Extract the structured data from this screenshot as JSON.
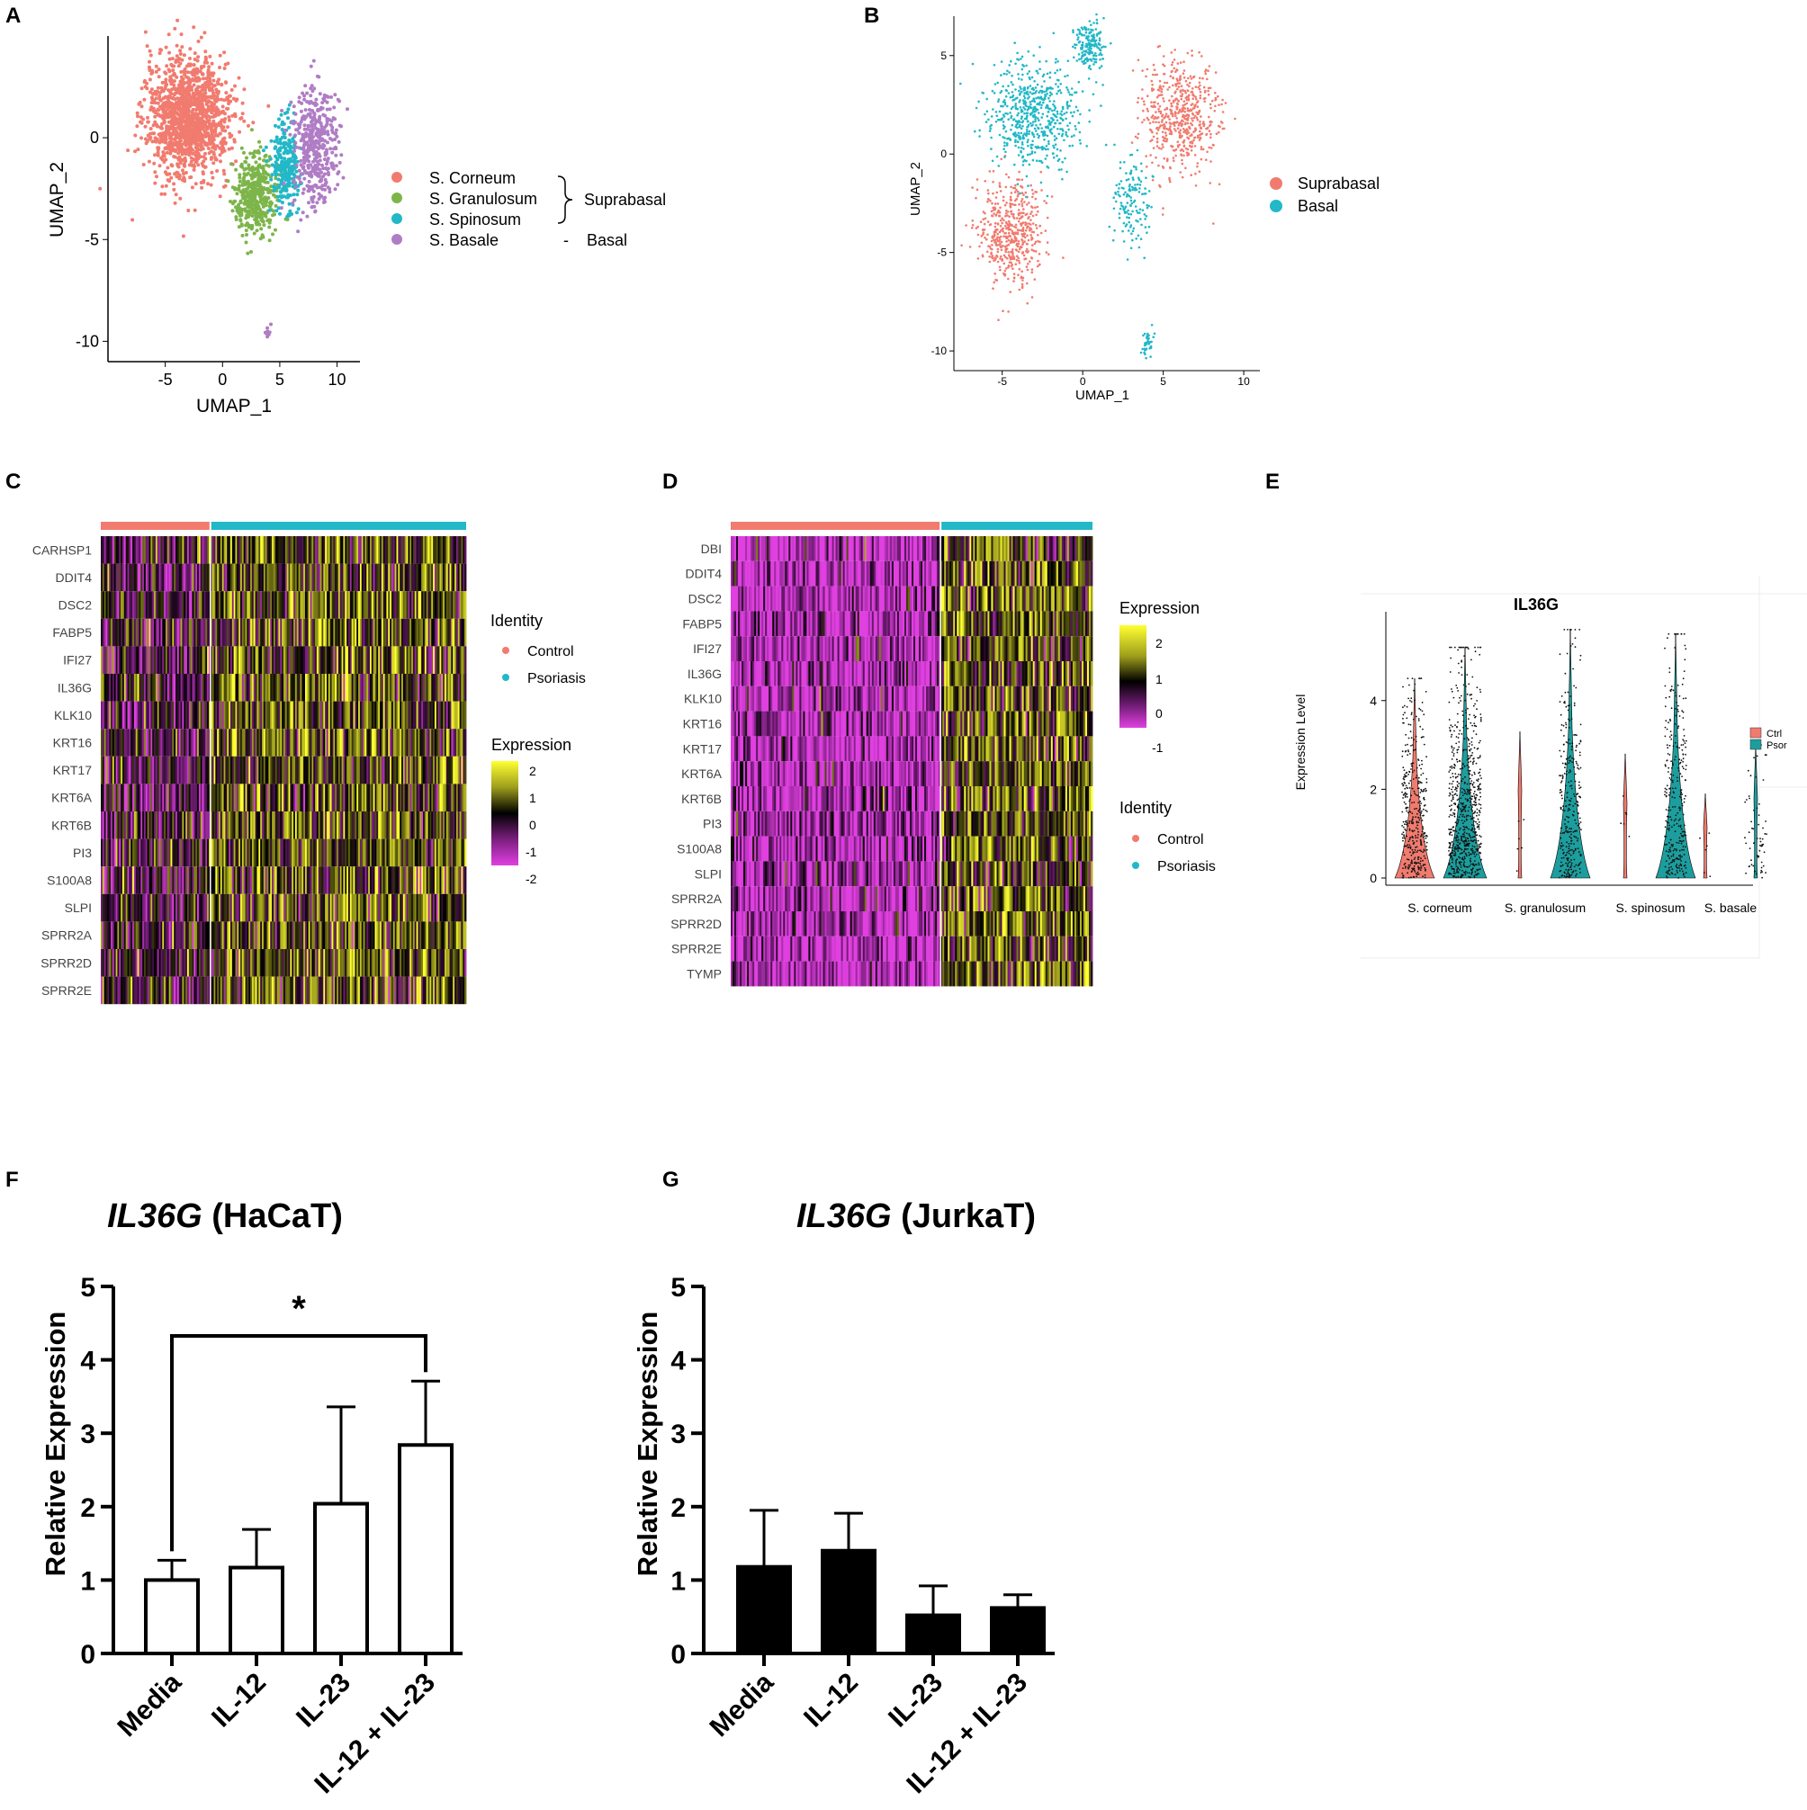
{
  "panel_letters": [
    "A",
    "B",
    "C",
    "D",
    "E",
    "F",
    "G"
  ],
  "colors": {
    "corneum": "#F17B6F",
    "granulosum": "#7DB54A",
    "spinosum": "#22B8C8",
    "basale": "#B07DC5",
    "suprabasal": "#F17B6F",
    "basal": "#22B8C8",
    "control": "#F17B6F",
    "psoriasis": "#22B8C8",
    "violin_ctrl": "#F17B6F",
    "violin_psor": "#1D9E9E"
  },
  "chart_data": [
    {
      "id": "A",
      "type": "scatter",
      "xlabel": "UMAP_1",
      "ylabel": "UMAP_2",
      "xticks": [
        "-5",
        "0",
        "5",
        "10"
      ],
      "yticks": [
        "0",
        "-5",
        "-10"
      ],
      "xlim": [
        -10,
        12
      ],
      "ylim": [
        -11,
        5
      ],
      "legend": [
        "S. Corneum",
        "S. Granulosum",
        "S. Spinosum",
        "S. Basale"
      ],
      "groups": [
        "Suprabasal",
        "Basal"
      ],
      "group_dash": "-",
      "clusters": [
        {
          "name": "S. Corneum",
          "cx": -3,
          "cy": 1,
          "sx": 3.0,
          "sy": 2.4,
          "n": 1400
        },
        {
          "name": "S. Granulosum",
          "cx": 3,
          "cy": -2.8,
          "sx": 1.6,
          "sy": 1.6,
          "n": 420
        },
        {
          "name": "S. Spinosum",
          "cx": 5.5,
          "cy": -1.5,
          "sx": 1.0,
          "sy": 1.8,
          "n": 260
        },
        {
          "name": "S. Basale",
          "cx": 8,
          "cy": -0.5,
          "sx": 1.6,
          "sy": 2.6,
          "n": 420
        }
      ]
    },
    {
      "id": "B",
      "type": "scatter",
      "xlabel": "UMAP_1",
      "ylabel": "UMAP_2",
      "xticks": [
        "-5",
        "0",
        "5",
        "10"
      ],
      "yticks": [
        "5",
        "0",
        "-5",
        "-10"
      ],
      "xlim": [
        -8,
        11
      ],
      "ylim": [
        -11,
        7
      ],
      "legend": [
        "Suprabasal",
        "Basal"
      ],
      "clusters": [
        {
          "name": "Suprabasal",
          "cx": -4.5,
          "cy": -4,
          "sx": 1.6,
          "sy": 2.2,
          "n": 500
        },
        {
          "name": "Suprabasal",
          "cx": 6,
          "cy": 2,
          "sx": 2.0,
          "sy": 2.4,
          "n": 560
        },
        {
          "name": "Basal",
          "cx": -3,
          "cy": 2,
          "sx": 2.4,
          "sy": 2.2,
          "n": 600
        },
        {
          "name": "Basal",
          "cx": 0.5,
          "cy": 5.5,
          "sx": 0.8,
          "sy": 1.0,
          "n": 180
        },
        {
          "name": "Basal",
          "cx": 3,
          "cy": -2.5,
          "sx": 0.9,
          "sy": 1.8,
          "n": 140
        },
        {
          "name": "Basal",
          "cx": 4,
          "cy": -9.5,
          "sx": 0.3,
          "sy": 0.6,
          "n": 40
        }
      ]
    },
    {
      "id": "C",
      "type": "heatmap",
      "genes": [
        "CARHSP1",
        "DDIT4",
        "DSC2",
        "FABP5",
        "IFI27",
        "IL36G",
        "KLK10",
        "KRT16",
        "KRT17",
        "KRT6A",
        "KRT6B",
        "PI3",
        "S100A8",
        "SLPI",
        "SPRR2A",
        "SPRR2D",
        "SPRR2E"
      ],
      "groups": [
        {
          "name": "Control",
          "fraction": 0.3
        },
        {
          "name": "Psoriasis",
          "fraction": 0.7
        }
      ],
      "legend_identity_title": "Identity",
      "legend_identity": [
        "Control",
        "Psoriasis"
      ],
      "legend_expression_title": "Expression",
      "legend_expression_ticks": [
        "2",
        "1",
        "0",
        "-1",
        "-2"
      ],
      "range": [
        -2,
        2
      ]
    },
    {
      "id": "D",
      "type": "heatmap",
      "genes": [
        "DBI",
        "DDIT4",
        "DSC2",
        "FABP5",
        "IFI27",
        "IL36G",
        "KLK10",
        "KRT16",
        "KRT17",
        "KRT6A",
        "KRT6B",
        "PI3",
        "S100A8",
        "SLPI",
        "SPRR2A",
        "SPRR2D",
        "SPRR2E",
        "TYMP"
      ],
      "groups": [
        {
          "name": "Control",
          "fraction": 0.58
        },
        {
          "name": "Psoriasis",
          "fraction": 0.42
        }
      ],
      "legend_expression_title": "Expression",
      "legend_expression_ticks": [
        "2",
        "1",
        "0",
        "-1"
      ],
      "legend_identity_title": "Identity",
      "legend_identity": [
        "Control",
        "Psoriasis"
      ],
      "range": [
        -1.5,
        2.5
      ]
    },
    {
      "id": "E",
      "type": "violin",
      "title": "IL36G",
      "ylabel": "Expression Level",
      "yticks": [
        "0",
        "2",
        "4"
      ],
      "ylim": [
        0,
        5.8
      ],
      "categories": [
        "S. corneum",
        "S. granulosum",
        "S. spinosum",
        "S. basale"
      ],
      "legend": [
        "Ctrl",
        "Psor"
      ],
      "max": {
        "Ctrl": [
          4.5,
          3.3,
          2.8,
          1.9
        ],
        "Psor": [
          5.2,
          5.6,
          5.5,
          3.0
        ]
      }
    },
    {
      "id": "F",
      "type": "bar",
      "title_gene": "IL36G",
      "title_rest": " (HaCaT)",
      "ylabel": "Relative Expression",
      "categories": [
        "Media",
        "IL-12",
        "IL-23",
        "IL-12 + IL-23"
      ],
      "values": [
        1.0,
        1.17,
        2.04,
        2.84
      ],
      "errors": [
        0.27,
        0.52,
        1.32,
        0.87
      ],
      "ylim": [
        0,
        5
      ],
      "yticks": [
        "0",
        "1",
        "2",
        "3",
        "4",
        "5"
      ],
      "significance": "*",
      "fill": "#ffffff"
    },
    {
      "id": "G",
      "type": "bar",
      "title_gene": "IL36G",
      "title_rest": " (JurkaT)",
      "ylabel": "Relative Expression",
      "categories": [
        "Media",
        "IL-12",
        "IL-23",
        "IL-12 + IL-23"
      ],
      "values": [
        1.18,
        1.4,
        0.52,
        0.62
      ],
      "errors": [
        0.77,
        0.51,
        0.4,
        0.18
      ],
      "ylim": [
        0,
        5
      ],
      "yticks": [
        "0",
        "1",
        "2",
        "3",
        "4",
        "5"
      ],
      "fill": "#000000"
    }
  ]
}
